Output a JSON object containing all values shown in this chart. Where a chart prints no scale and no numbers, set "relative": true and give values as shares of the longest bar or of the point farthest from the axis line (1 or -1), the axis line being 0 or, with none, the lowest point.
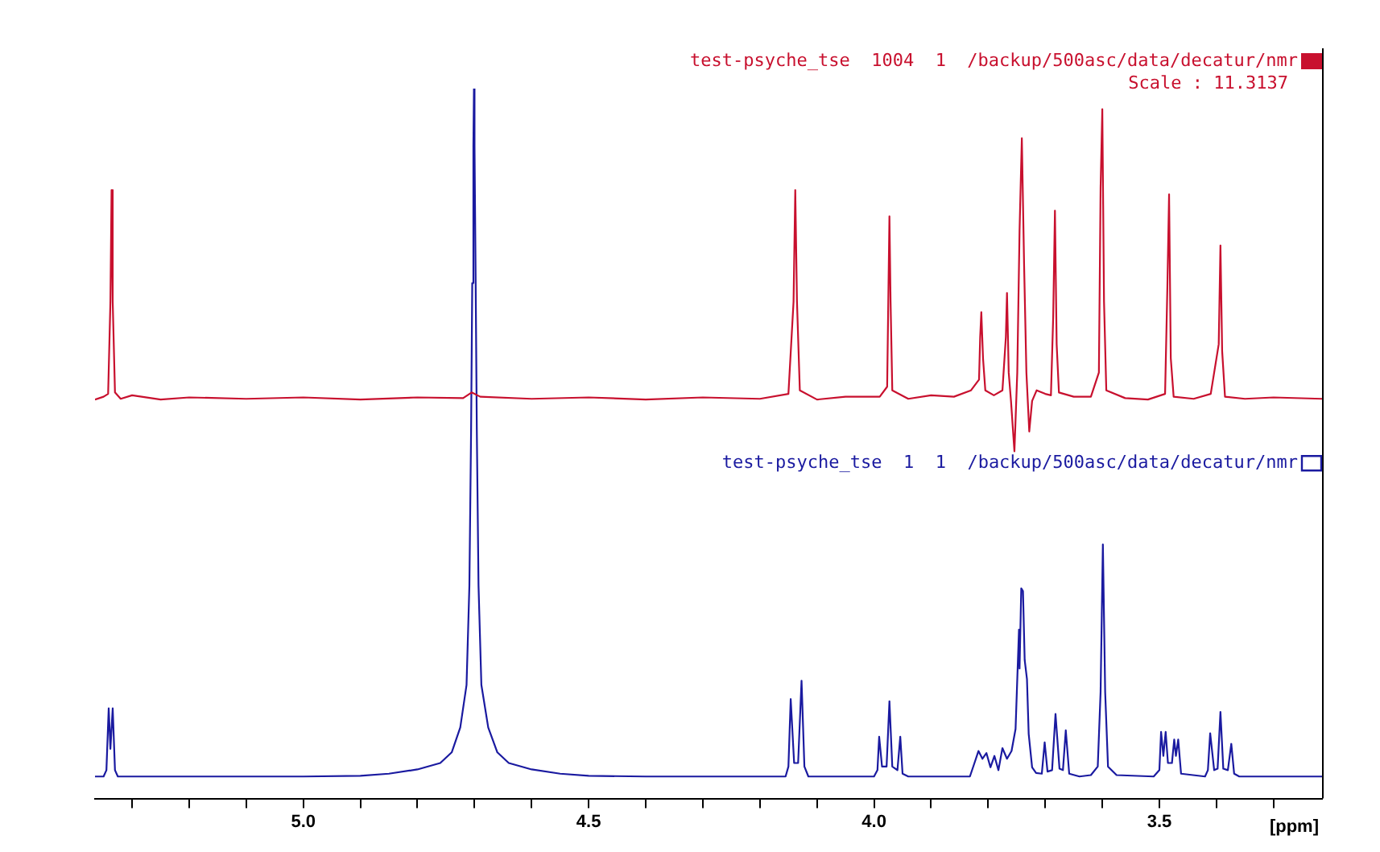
{
  "chart_data": {
    "type": "line",
    "relative": true,
    "xlabel": "[ppm]",
    "xlim": [
      5.365,
      3.215
    ],
    "xticks": [
      {
        "value": 5.3,
        "label": null
      },
      {
        "value": 5.2,
        "label": null
      },
      {
        "value": 5.1,
        "label": null
      },
      {
        "value": 5,
        "label": "5.0"
      },
      {
        "value": 4.9,
        "label": null
      },
      {
        "value": 4.8,
        "label": null
      },
      {
        "value": 4.7,
        "label": null
      },
      {
        "value": 4.6,
        "label": null
      },
      {
        "value": 4.5,
        "label": "4.5"
      },
      {
        "value": 4.4,
        "label": null
      },
      {
        "value": 4.3,
        "label": null
      },
      {
        "value": 4.2,
        "label": null
      },
      {
        "value": 4.1,
        "label": null
      },
      {
        "value": 4,
        "label": "4.0"
      },
      {
        "value": 3.9,
        "label": null
      },
      {
        "value": 3.8,
        "label": null
      },
      {
        "value": 3.7,
        "label": null
      },
      {
        "value": 3.6,
        "label": null
      },
      {
        "value": 3.5,
        "label": "3.5"
      },
      {
        "value": 3.4,
        "label": null
      },
      {
        "value": 3.3,
        "label": null
      }
    ],
    "grid": false,
    "legend": "right",
    "marker": "none",
    "line_style": "solid",
    "annotations": [
      "Scale : 11.3137"
    ],
    "series": [
      {
        "name": "test-psyche_tse  1004  1  /backup/500asc/data/decatur/nmr",
        "color": "#c8102e",
        "x": [
          5.365,
          5.35,
          5.342,
          5.338,
          5.336,
          5.334,
          5.33,
          5.32,
          5.3,
          5.25,
          5.2,
          5.1,
          5.0,
          4.9,
          4.8,
          4.72,
          4.705,
          4.69,
          4.6,
          4.5,
          4.4,
          4.3,
          4.2,
          4.15,
          4.141,
          4.138,
          4.135,
          4.13,
          4.1,
          4.05,
          3.99,
          3.977,
          3.975,
          3.973,
          3.971,
          3.968,
          3.94,
          3.9,
          3.86,
          3.83,
          3.816,
          3.814,
          3.812,
          3.809,
          3.805,
          3.79,
          3.775,
          3.769,
          3.767,
          3.764,
          3.76,
          3.754,
          3.749,
          3.745,
          3.741,
          3.737,
          3.733,
          3.728,
          3.723,
          3.715,
          3.7,
          3.69,
          3.686,
          3.683,
          3.68,
          3.676,
          3.65,
          3.62,
          3.606,
          3.603,
          3.6,
          3.597,
          3.593,
          3.56,
          3.52,
          3.49,
          3.486,
          3.483,
          3.48,
          3.475,
          3.44,
          3.41,
          3.396,
          3.393,
          3.39,
          3.385,
          3.35,
          3.3,
          3.215
        ],
        "values": [
          0.562,
          0.566,
          0.57,
          0.7,
          0.857,
          0.7,
          0.572,
          0.563,
          0.568,
          0.562,
          0.565,
          0.563,
          0.565,
          0.562,
          0.565,
          0.564,
          0.572,
          0.566,
          0.563,
          0.565,
          0.562,
          0.565,
          0.563,
          0.57,
          0.7,
          0.857,
          0.7,
          0.575,
          0.562,
          0.566,
          0.566,
          0.58,
          0.7,
          0.82,
          0.7,
          0.575,
          0.563,
          0.568,
          0.566,
          0.575,
          0.59,
          0.65,
          0.685,
          0.62,
          0.575,
          0.568,
          0.575,
          0.65,
          0.712,
          0.6,
          0.56,
          0.489,
          0.6,
          0.8,
          0.93,
          0.75,
          0.6,
          0.517,
          0.56,
          0.575,
          0.57,
          0.568,
          0.68,
          0.828,
          0.64,
          0.572,
          0.566,
          0.566,
          0.6,
          0.86,
          0.971,
          0.7,
          0.575,
          0.564,
          0.562,
          0.57,
          0.72,
          0.851,
          0.62,
          0.566,
          0.563,
          0.57,
          0.64,
          0.779,
          0.63,
          0.566,
          0.563,
          0.565,
          0.563
        ]
      },
      {
        "name": "test-psyche_tse  1  1  /backup/500asc/data/decatur/nmr",
        "color": "#1a1aa0",
        "x": [
          5.365,
          5.35,
          5.345,
          5.341,
          5.338,
          5.334,
          5.33,
          5.325,
          5.0,
          4.9,
          4.85,
          4.8,
          4.76,
          4.74,
          4.725,
          4.714,
          4.709,
          4.706,
          4.704,
          4.702,
          4.701,
          4.7,
          4.698,
          4.696,
          4.693,
          4.688,
          4.676,
          4.66,
          4.64,
          4.6,
          4.55,
          4.5,
          4.4,
          4.155,
          4.15,
          4.146,
          4.14,
          4.133,
          4.127,
          4.122,
          4.115,
          4.0,
          3.994,
          3.991,
          3.986,
          3.978,
          3.973,
          3.968,
          3.959,
          3.954,
          3.95,
          3.94,
          3.84,
          3.832,
          3.824,
          3.817,
          3.81,
          3.803,
          3.796,
          3.789,
          3.782,
          3.775,
          3.767,
          3.759,
          3.752,
          3.746,
          3.745,
          3.742,
          3.739,
          3.736,
          3.732,
          3.729,
          3.723,
          3.716,
          3.706,
          3.701,
          3.696,
          3.688,
          3.682,
          3.675,
          3.669,
          3.664,
          3.658,
          3.64,
          3.62,
          3.608,
          3.603,
          3.599,
          3.595,
          3.59,
          3.575,
          3.51,
          3.5,
          3.497,
          3.493,
          3.489,
          3.485,
          3.478,
          3.474,
          3.471,
          3.467,
          3.462,
          3.42,
          3.415,
          3.411,
          3.404,
          3.398,
          3.393,
          3.388,
          3.38,
          3.374,
          3.369,
          3.36,
          3.215
        ],
        "values": [
          0.031,
          0.031,
          0.04,
          0.127,
          0.07,
          0.127,
          0.04,
          0.031,
          0.031,
          0.032,
          0.035,
          0.041,
          0.05,
          0.065,
          0.1,
          0.16,
          0.3,
          0.52,
          0.726,
          0.919,
          1.0,
          0.919,
          0.726,
          0.52,
          0.3,
          0.16,
          0.1,
          0.065,
          0.05,
          0.041,
          0.035,
          0.032,
          0.031,
          0.031,
          0.045,
          0.14,
          0.05,
          0.05,
          0.166,
          0.045,
          0.031,
          0.031,
          0.04,
          0.087,
          0.045,
          0.045,
          0.137,
          0.045,
          0.04,
          0.087,
          0.035,
          0.031,
          0.031,
          0.031,
          0.05,
          0.067,
          0.056,
          0.064,
          0.044,
          0.06,
          0.04,
          0.071,
          0.056,
          0.067,
          0.098,
          0.238,
          0.183,
          0.296,
          0.292,
          0.195,
          0.168,
          0.091,
          0.044,
          0.036,
          0.035,
          0.079,
          0.038,
          0.04,
          0.119,
          0.042,
          0.04,
          0.096,
          0.035,
          0.031,
          0.033,
          0.045,
          0.15,
          0.358,
          0.15,
          0.045,
          0.033,
          0.031,
          0.04,
          0.094,
          0.06,
          0.094,
          0.05,
          0.05,
          0.083,
          0.06,
          0.083,
          0.035,
          0.031,
          0.04,
          0.092,
          0.04,
          0.042,
          0.122,
          0.042,
          0.04,
          0.077,
          0.035,
          0.031,
          0.031
        ]
      }
    ]
  }
}
